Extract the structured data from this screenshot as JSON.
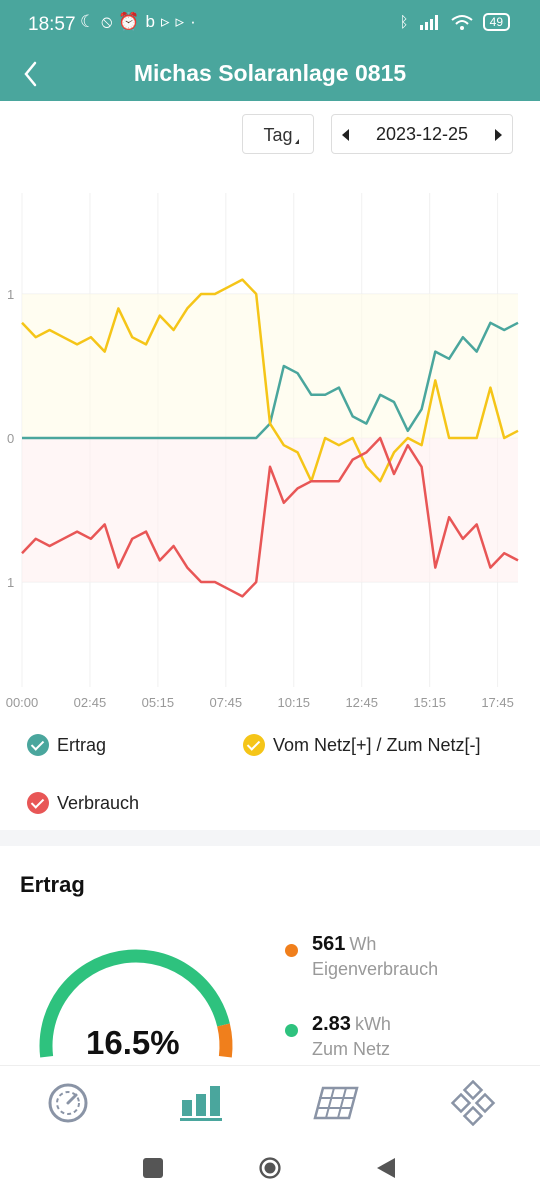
{
  "status_bar": {
    "time": "18:57",
    "battery": "49",
    "left_icons": [
      "moon-icon",
      "mute-icon",
      "alarm-icon",
      "app-b-icon",
      "play-icon",
      "play-icon",
      "dot-icon"
    ],
    "right_icons": [
      "bluetooth-icon",
      "signal-icon",
      "wifi-icon",
      "battery-icon"
    ]
  },
  "header": {
    "title": "Michas Solaranlage 0815",
    "back_icon": "chevron-left-icon",
    "color": "#4aa69d"
  },
  "controls": {
    "period": "Tag",
    "date": "2023-12-25"
  },
  "chart_data": {
    "type": "line",
    "x_ticks": [
      "00:00",
      "02:45",
      "05:15",
      "07:45",
      "10:15",
      "12:45",
      "15:15",
      "17:45"
    ],
    "y_ticks": [
      "1",
      "0",
      "1"
    ],
    "ylim": [
      -1.7,
      1.7
    ],
    "grid": true,
    "legend_position": "bottom",
    "x": [
      "00:00",
      "00:30",
      "01:00",
      "01:30",
      "02:00",
      "02:30",
      "03:00",
      "03:30",
      "04:00",
      "04:30",
      "05:00",
      "05:30",
      "06:00",
      "06:30",
      "07:00",
      "07:30",
      "08:00",
      "08:30",
      "09:00",
      "09:30",
      "10:00",
      "10:30",
      "11:00",
      "11:30",
      "12:00",
      "12:30",
      "13:00",
      "13:30",
      "14:00",
      "14:30",
      "15:00",
      "15:30",
      "16:00",
      "16:30",
      "17:00",
      "17:30",
      "18:00"
    ],
    "series": [
      {
        "name": "Ertrag",
        "color": "#4aa69d",
        "values": [
          0,
          0,
          0,
          0,
          0,
          0,
          0,
          0,
          0,
          0,
          0,
          0,
          0,
          0,
          0,
          0,
          0,
          0,
          0.1,
          0.5,
          0.45,
          0.3,
          0.3,
          0.35,
          0.15,
          0.1,
          0.3,
          0.25,
          0.05,
          0.2,
          0.6,
          0.55,
          0.7,
          0.6,
          0.8,
          0.75,
          0.8
        ]
      },
      {
        "name": "Vom Netz[+] / Zum Netz[-]",
        "color": "#f5c518",
        "values": [
          0.8,
          0.7,
          0.75,
          0.7,
          0.65,
          0.7,
          0.6,
          0.9,
          0.7,
          0.65,
          0.85,
          0.75,
          0.9,
          1.0,
          1.0,
          1.05,
          1.1,
          1.0,
          0.1,
          -0.05,
          -0.1,
          -0.3,
          0,
          -0.05,
          0,
          -0.2,
          -0.3,
          -0.1,
          0,
          -0.05,
          0.4,
          0,
          0,
          0,
          0.35,
          0,
          0.05
        ]
      },
      {
        "name": "Verbrauch",
        "color": "#e85656",
        "values": [
          -0.8,
          -0.7,
          -0.75,
          -0.7,
          -0.65,
          -0.7,
          -0.6,
          -0.9,
          -0.7,
          -0.65,
          -0.85,
          -0.75,
          -0.9,
          -1.0,
          -1.0,
          -1.05,
          -1.1,
          -1.0,
          -0.2,
          -0.45,
          -0.35,
          -0.3,
          -0.3,
          -0.3,
          -0.15,
          -0.1,
          0,
          -0.25,
          -0.05,
          -0.2,
          -0.9,
          -0.55,
          -0.7,
          -0.6,
          -0.9,
          -0.8,
          -0.85
        ]
      }
    ]
  },
  "legend": [
    {
      "label": "Ertrag",
      "color": "#4aa69d"
    },
    {
      "label": "Vom Netz[+] / Zum Netz[-]",
      "color": "#f5c518"
    },
    {
      "label": "Verbrauch",
      "color": "#e85656"
    }
  ],
  "summary": {
    "title": "Ertrag",
    "gauge_percent": 16.5,
    "gauge_label": "16.5%",
    "stats": [
      {
        "value": "561",
        "unit": "Wh",
        "label": "Eigenverbrauch",
        "color": "#f07f1c"
      },
      {
        "value": "2.83",
        "unit": "kWh",
        "label": "Zum Netz",
        "color": "#2ec27e"
      }
    ]
  },
  "bottom_nav": [
    {
      "icon": "gauge-icon",
      "active": false
    },
    {
      "icon": "bar-chart-icon",
      "active": true
    },
    {
      "icon": "solar-panel-icon",
      "active": false
    },
    {
      "icon": "devices-grid-icon",
      "active": false
    }
  ],
  "system_nav": [
    "square-icon",
    "circle-icon",
    "triangle-back-icon"
  ]
}
